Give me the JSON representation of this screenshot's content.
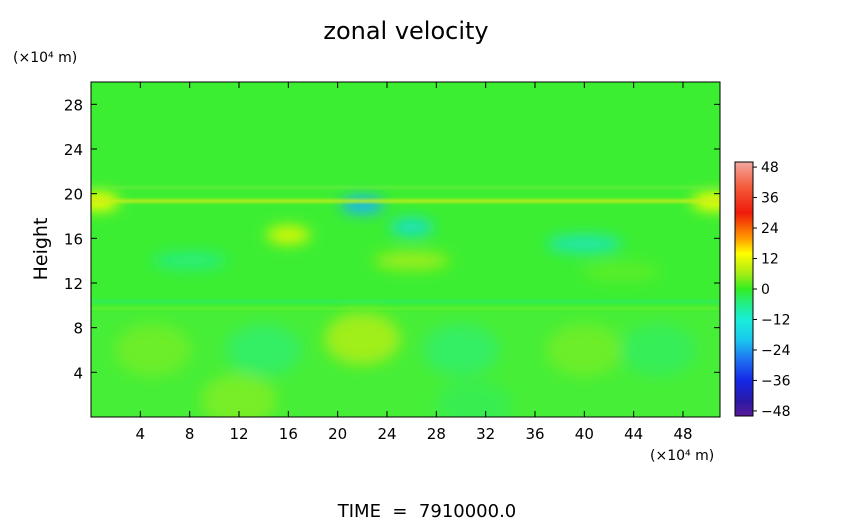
{
  "chart_data": {
    "type": "heatmap",
    "title": "zonal velocity",
    "ylabel": "Height",
    "y_unit_label": "(×10⁴ m)",
    "x_unit_label": "(×10⁴ m)",
    "footer": "TIME  =  7910000.0",
    "xlim": [
      0,
      51
    ],
    "ylim": [
      0,
      30
    ],
    "x_ticks": [
      "4",
      "8",
      "12",
      "16",
      "20",
      "24",
      "28",
      "32",
      "36",
      "40",
      "44",
      "48"
    ],
    "y_ticks": [
      "4",
      "8",
      "12",
      "16",
      "20",
      "24",
      "28"
    ],
    "colorbar": {
      "min": -50,
      "max": 50,
      "tick_labels": [
        "48",
        "36",
        "24",
        "12",
        "0",
        "−12",
        "−24",
        "−36",
        "−48"
      ],
      "tick_values": [
        48,
        36,
        24,
        12,
        0,
        -12,
        -24,
        -36,
        -48
      ]
    },
    "field_features": [
      {
        "x": 5,
        "y": 6,
        "value": 6
      },
      {
        "x": 12,
        "y": 1.5,
        "value": 7
      },
      {
        "x": 14,
        "y": 6,
        "value": -6
      },
      {
        "x": 22,
        "y": 7,
        "value": 10
      },
      {
        "x": 30,
        "y": 6,
        "value": -6
      },
      {
        "x": 31,
        "y": 1,
        "value": -4
      },
      {
        "x": 40,
        "y": 6,
        "value": 6
      },
      {
        "x": 46,
        "y": 6,
        "value": -5
      },
      {
        "x": 16,
        "y": 16.3,
        "value": 14
      },
      {
        "x": 22,
        "y": 19,
        "value": -22
      },
      {
        "x": 26,
        "y": 17,
        "value": -14
      },
      {
        "x": 26,
        "y": 14,
        "value": 10
      },
      {
        "x": 40,
        "y": 15.5,
        "value": -12
      },
      {
        "x": 8,
        "y": 14,
        "value": -8
      },
      {
        "x": 43,
        "y": 13,
        "value": 5
      },
      {
        "x": 0.5,
        "y": 19.3,
        "value": 16
      },
      {
        "x": 50.5,
        "y": 19.3,
        "value": 16
      }
    ]
  }
}
